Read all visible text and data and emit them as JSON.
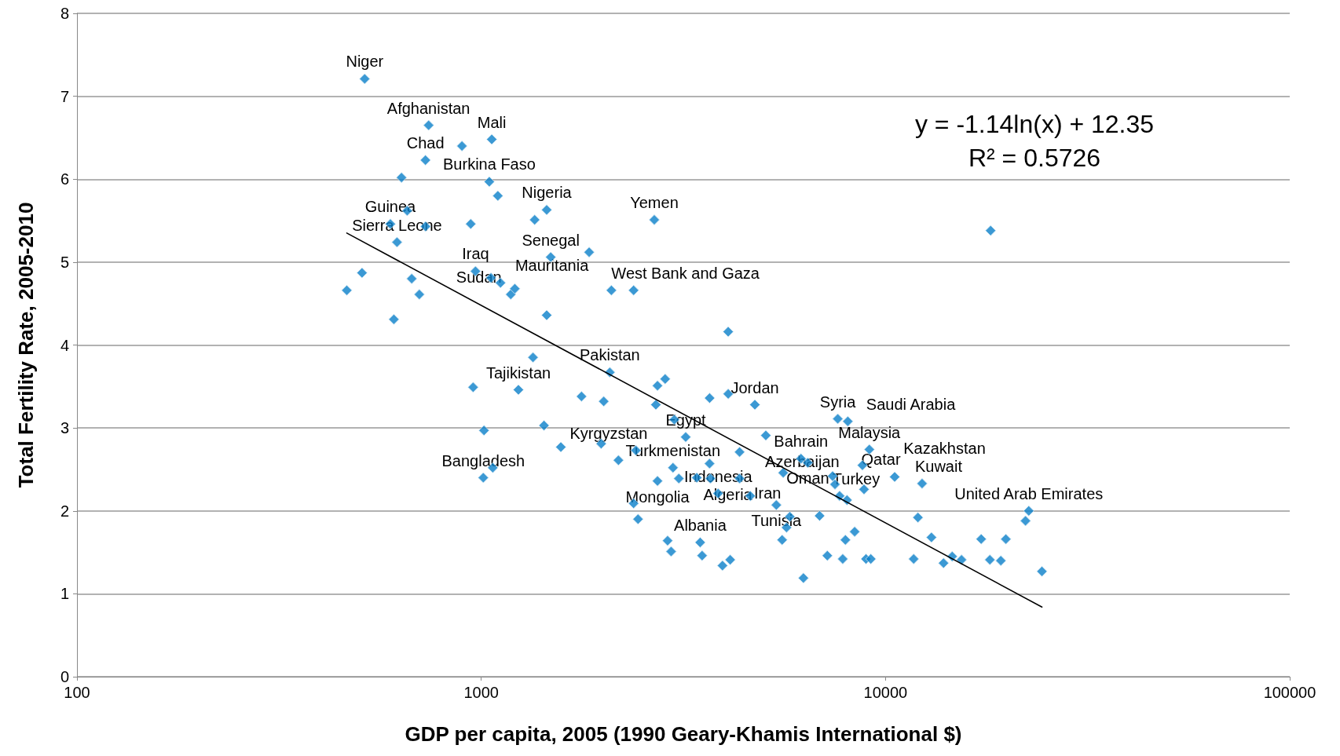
{
  "chart_data": {
    "type": "scatter",
    "xlabel": "GDP per capita, 2005 (1990 Geary-Khamis International $)",
    "ylabel": "Total Fertility Rate, 2005-2010",
    "log": "x",
    "xlim": [
      100,
      100000
    ],
    "xticks": [
      100,
      1000,
      10000,
      100000
    ],
    "ylim": [
      0,
      8
    ],
    "yticks": [
      0,
      1,
      2,
      3,
      4,
      5,
      6,
      7,
      8
    ],
    "grid": "y",
    "marker": "diamond",
    "series": [
      {
        "color": "#0a7fc9",
        "x": [
          515,
          741,
          1062,
          896,
          728,
          635,
          1047,
          1099,
          1452,
          1356,
          2680,
          656,
          596,
          728,
          942,
          619,
          1849,
          18200,
          507,
          465,
          673,
          703,
          968,
          1057,
          1116,
          1183,
          1211,
          608,
          1452,
          2099,
          2382,
          4083,
          1343,
          2080,
          955,
          1236,
          1770,
          2009,
          2729,
          2851,
          2704,
          3672,
          4083,
          4753,
          1016,
          1430,
          1574,
          1980,
          2185,
          1068,
          1012,
          3004,
          3205,
          2413,
          2981,
          2729,
          3083,
          3415,
          3672,
          3690,
          4356,
          4356,
          4630,
          3855,
          5058,
          6180,
          6425,
          5585,
          5370,
          5800,
          5690,
          5550,
          6871,
          6266,
          7500,
          7400,
          7620,
          8070,
          9120,
          8770,
          8850,
          7700,
          8030,
          10540,
          12320,
          12030,
          12990,
          11740,
          13920,
          14620,
          15420,
          17250,
          18120,
          19290,
          19850,
          22620,
          22200,
          24380,
          2891,
          2950,
          3480,
          3519,
          3951,
          4130,
          2382,
          2443,
          7180,
          7960,
          7840,
          8390,
          8950,
          9200,
          1486
        ],
        "values": [
          7.21,
          6.65,
          6.48,
          6.4,
          6.23,
          6.02,
          5.97,
          5.8,
          5.63,
          5.51,
          5.51,
          5.62,
          5.46,
          5.43,
          5.46,
          5.24,
          5.12,
          5.38,
          4.87,
          4.66,
          4.8,
          4.61,
          4.89,
          4.81,
          4.75,
          4.61,
          4.68,
          4.31,
          4.36,
          4.66,
          4.66,
          4.16,
          3.85,
          3.67,
          3.49,
          3.46,
          3.38,
          3.32,
          3.51,
          3.59,
          3.28,
          3.36,
          3.41,
          3.28,
          2.97,
          3.03,
          2.77,
          2.81,
          2.61,
          2.52,
          2.4,
          3.1,
          2.89,
          2.73,
          2.52,
          2.36,
          2.39,
          2.4,
          2.57,
          2.39,
          2.71,
          2.39,
          2.18,
          2.21,
          2.91,
          2.63,
          2.58,
          2.46,
          2.07,
          1.93,
          1.8,
          1.65,
          1.94,
          1.19,
          2.32,
          2.42,
          3.11,
          3.08,
          2.74,
          2.55,
          2.26,
          2.18,
          2.13,
          2.41,
          2.33,
          1.92,
          1.68,
          1.42,
          1.37,
          1.45,
          1.41,
          1.66,
          1.41,
          1.4,
          1.66,
          2.0,
          1.88,
          1.27,
          1.64,
          1.51,
          1.62,
          1.46,
          1.34,
          1.41,
          2.09,
          1.9,
          1.46,
          1.65,
          1.42,
          1.75,
          1.42,
          1.42,
          5.06
        ]
      },
      {
        "type": "line",
        "color": "#000000",
        "marker": "none",
        "x": [
          465,
          24380
        ],
        "values": [
          5.35,
          0.84
        ]
      }
    ],
    "annotations": [
      "y = -1.14ln(x) + 12.35",
      "R² = 0.5726",
      {
        "text": "Niger",
        "x": 515,
        "y": 7.21
      },
      {
        "text": "Afghanistan",
        "x": 741,
        "y": 6.65
      },
      {
        "text": "Mali",
        "x": 1062,
        "y": 6.48
      },
      {
        "text": "Chad",
        "x": 728,
        "y": 6.23
      },
      {
        "text": "Burkina Faso",
        "x": 1047,
        "y": 5.97
      },
      {
        "text": "Guinea",
        "x": 596,
        "y": 5.46
      },
      {
        "text": "Sierra Leone",
        "x": 619,
        "y": 5.24
      },
      {
        "text": "Nigeria",
        "x": 1452,
        "y": 5.63
      },
      {
        "text": "Yemen",
        "x": 2680,
        "y": 5.51
      },
      {
        "text": "Senegal",
        "x": 1486,
        "y": 5.06
      },
      {
        "text": "Iraq",
        "x": 968,
        "y": 4.89
      },
      {
        "text": "Mauritania",
        "x": 1116,
        "y": 4.75
      },
      {
        "text": "Sudan",
        "x": 1183,
        "y": 4.61
      },
      {
        "text": "West Bank and Gaza",
        "x": 2382,
        "y": 4.66
      },
      {
        "text": "Pakistan",
        "x": 2080,
        "y": 3.67
      },
      {
        "text": "Tajikistan",
        "x": 1236,
        "y": 3.46
      },
      {
        "text": "Jordan",
        "x": 4753,
        "y": 3.28
      },
      {
        "text": "Syria",
        "x": 7620,
        "y": 3.11
      },
      {
        "text": "Saudi Arabia",
        "x": 8070,
        "y": 3.08
      },
      {
        "text": "Egypt",
        "x": 3205,
        "y": 2.89
      },
      {
        "text": "Kyrgyzstan",
        "x": 2413,
        "y": 2.73
      },
      {
        "text": "Malaysia",
        "x": 9120,
        "y": 2.74
      },
      {
        "text": "Bahrain",
        "x": 6180,
        "y": 2.63
      },
      {
        "text": "Oman",
        "x": 6425,
        "y": 2.58
      },
      {
        "text": "Kazakhstan",
        "x": 8770,
        "y": 2.55
      },
      {
        "text": "Qatar",
        "x": 10540,
        "y": 2.41
      },
      {
        "text": "Kuwait",
        "x": 12320,
        "y": 2.33
      },
      {
        "text": "Turkmenistan",
        "x": 2981,
        "y": 2.52
      },
      {
        "text": "Mongolia",
        "x": 2729,
        "y": 2.36
      },
      {
        "text": "Algeria",
        "x": 3083,
        "y": 2.39
      },
      {
        "text": "Bangladesh",
        "x": 1012,
        "y": 2.4
      },
      {
        "text": "Indonesia",
        "x": 3855,
        "y": 2.21
      },
      {
        "text": "Azerbaijan",
        "x": 4630,
        "y": 2.18
      },
      {
        "text": "Tunisia",
        "x": 5370,
        "y": 2.07
      },
      {
        "text": "Turkey",
        "x": 7700,
        "y": 2.18
      },
      {
        "text": "Iran",
        "x": 5690,
        "y": 1.8
      },
      {
        "text": "United Arab Emirates",
        "x": 22620,
        "y": 2.0
      },
      {
        "text": "Albania",
        "x": 3480,
        "y": 1.62
      }
    ]
  }
}
